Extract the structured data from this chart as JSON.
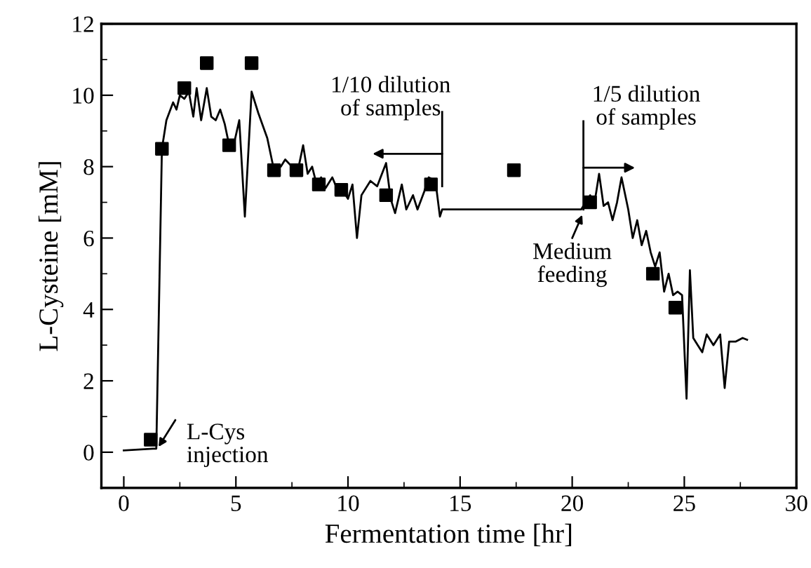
{
  "chart_data": {
    "type": "line",
    "xlabel": "Fermentation time [hr]",
    "ylabel": "L-Cysteine [mM]",
    "xlim": [
      -1,
      30
    ],
    "xticks": [
      0,
      5,
      10,
      15,
      20,
      25,
      30
    ],
    "ylim": [
      -1,
      12
    ],
    "yticks": [
      0,
      2,
      4,
      6,
      8,
      10,
      12
    ],
    "grid": false,
    "legend": false,
    "series": [
      {
        "color": "#000000",
        "marker": "none",
        "line_style": "solid",
        "x": [
          0,
          1.3,
          1.45,
          1.7,
          1.9,
          2.2,
          2.35,
          2.5,
          2.7,
          2.9,
          3.1,
          3.25,
          3.45,
          3.7,
          3.9,
          4.1,
          4.3,
          4.5,
          4.7,
          4.9,
          5.15,
          5.4,
          5.7,
          6.0,
          6.4,
          6.7,
          7.0,
          7.2,
          7.5,
          7.8,
          8.0,
          8.2,
          8.4,
          8.6,
          8.8,
          9.0,
          9.3,
          9.5,
          9.8,
          10.0,
          10.2,
          10.4,
          10.6,
          11.0,
          11.3,
          11.7,
          11.9,
          12.1,
          12.4,
          12.6,
          12.9,
          13.1,
          13.4,
          13.6,
          13.9,
          14.1,
          14.2,
          20.4,
          20.6,
          20.8,
          21.0,
          21.2,
          21.4,
          21.6,
          21.8,
          22.0,
          22.2,
          22.5,
          22.7,
          22.9,
          23.1,
          23.3,
          23.5,
          23.7,
          23.9,
          24.1,
          24.3,
          24.5,
          24.7,
          24.9,
          25.1,
          25.25,
          25.4,
          25.6,
          25.8,
          26.0,
          26.3,
          26.6,
          26.8,
          27.0,
          27.3,
          27.6,
          27.8
        ],
        "values": [
          0.05,
          0.1,
          0.1,
          8.5,
          9.3,
          9.8,
          9.6,
          10.0,
          9.9,
          10.1,
          9.4,
          10.2,
          9.3,
          10.2,
          9.4,
          9.3,
          9.6,
          9.2,
          8.6,
          8.6,
          9.3,
          6.6,
          10.1,
          9.5,
          8.8,
          7.9,
          8.0,
          8.2,
          8.0,
          8.0,
          8.6,
          7.8,
          8.0,
          7.5,
          7.7,
          7.4,
          7.7,
          7.4,
          7.3,
          7.1,
          7.5,
          6.0,
          7.2,
          7.6,
          7.45,
          8.1,
          7.1,
          6.7,
          7.5,
          6.8,
          7.2,
          6.8,
          7.3,
          7.7,
          7.6,
          6.6,
          6.8,
          6.8,
          7.0,
          7.2,
          7.0,
          7.8,
          6.9,
          7.0,
          6.5,
          7.0,
          7.7,
          6.8,
          6.0,
          6.5,
          5.8,
          6.2,
          5.6,
          5.2,
          5.6,
          4.5,
          5.0,
          4.4,
          4.5,
          4.4,
          1.5,
          5.1,
          3.2,
          3.0,
          2.8,
          3.3,
          3.0,
          3.3,
          1.8,
          3.1,
          3.1,
          3.2,
          3.15
        ]
      },
      {
        "type": "scatter",
        "color": "#000000",
        "marker": "square",
        "x": [
          1.2,
          1.7,
          2.7,
          3.7,
          4.7,
          5.7,
          6.7,
          7.7,
          8.7,
          9.7,
          11.7,
          13.7,
          17.4,
          20.8,
          23.6,
          24.6
        ],
        "values": [
          0.35,
          8.5,
          10.2,
          10.9,
          8.6,
          10.9,
          7.9,
          7.9,
          7.5,
          7.35,
          7.2,
          7.5,
          7.9,
          7.0,
          5.0,
          4.05
        ]
      }
    ],
    "annotations": [
      {
        "text": "L-Cys\ninjection",
        "x": 1.4,
        "y": 0.1
      },
      {
        "text": "Medium\nfeeding",
        "x": 20.5,
        "y": 6.8
      }
    ],
    "ref_lines": [
      {
        "axis": "x",
        "value": 14.2,
        "label": "1/10 dilution\nof samples"
      },
      {
        "axis": "x",
        "value": 20.5,
        "label": "1/5 dilution\nof samples"
      }
    ]
  }
}
